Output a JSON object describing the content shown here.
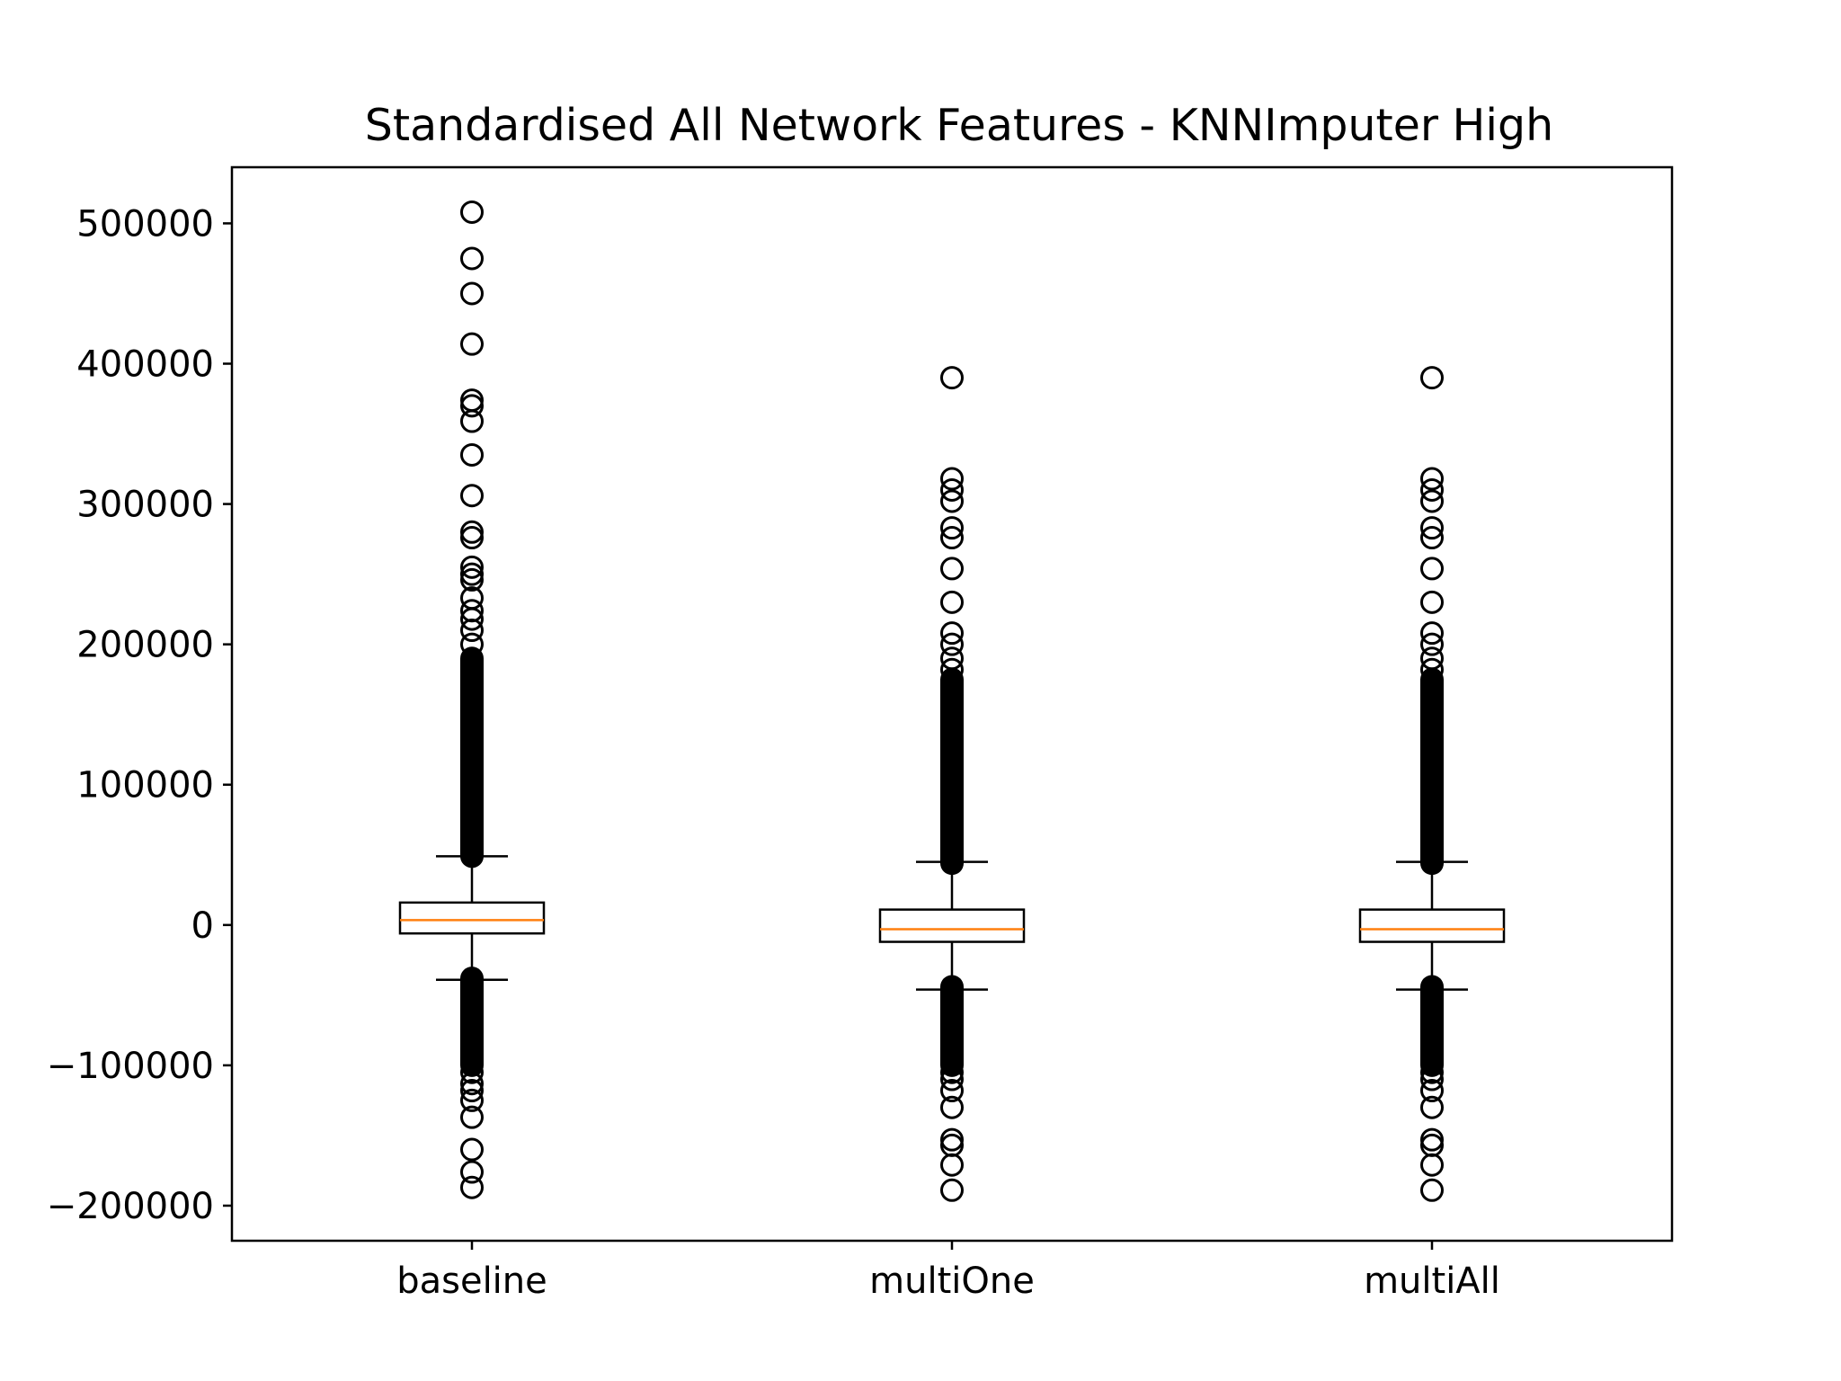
{
  "chart_data": {
    "type": "box",
    "title": "Standardised All Network Features - KNNImputer High",
    "xlabel": "",
    "ylabel": "",
    "categories": [
      "baseline",
      "multiOne",
      "multiAll"
    ],
    "ylim": [
      -225000,
      540000
    ],
    "yticks": [
      -200000,
      -100000,
      0,
      100000,
      200000,
      300000,
      400000,
      500000
    ],
    "ytick_labels": [
      "−200000",
      "−100000",
      "0",
      "100000",
      "200000",
      "300000",
      "400000",
      "500000"
    ],
    "grid": false,
    "legend": "none",
    "colors": {
      "box": "#000000",
      "median": "#ff7f0e",
      "flier": "#000000"
    },
    "boxes": [
      {
        "name": "baseline",
        "whisker_low": -39000,
        "q1": -6000,
        "median": 3500,
        "q3": 16000,
        "whisker_high": 49000,
        "fliers_dense_high": [
          49000,
          190000
        ],
        "fliers_dense_low": [
          -38000,
          -100000
        ],
        "fliers": [
          508000,
          475000,
          450000,
          414000,
          374000,
          370000,
          359000,
          335000,
          306000,
          280000,
          276000,
          255000,
          250000,
          246000,
          233000,
          224000,
          218000,
          210000,
          200000,
          -105000,
          -113000,
          -118000,
          -125000,
          -137000,
          -160000,
          -176000,
          -187000
        ]
      },
      {
        "name": "multiOne",
        "whisker_low": -46000,
        "q1": -12000,
        "median": -3000,
        "q3": 11000,
        "whisker_high": 45000,
        "fliers_dense_high": [
          44000,
          175000
        ],
        "fliers_dense_low": [
          -44000,
          -100000
        ],
        "fliers": [
          390000,
          318000,
          310000,
          302000,
          283000,
          276000,
          254000,
          230000,
          208000,
          200000,
          190000,
          182000,
          -105000,
          -110000,
          -118000,
          -130000,
          -153000,
          -157000,
          -171000,
          -189000
        ]
      },
      {
        "name": "multiAll",
        "whisker_low": -46000,
        "q1": -12000,
        "median": -3000,
        "q3": 11000,
        "whisker_high": 45000,
        "fliers_dense_high": [
          44000,
          175000
        ],
        "fliers_dense_low": [
          -44000,
          -100000
        ],
        "fliers": [
          390000,
          318000,
          310000,
          302000,
          283000,
          276000,
          254000,
          230000,
          208000,
          200000,
          190000,
          182000,
          -105000,
          -110000,
          -118000,
          -130000,
          -153000,
          -157000,
          -171000,
          -189000
        ]
      }
    ]
  }
}
